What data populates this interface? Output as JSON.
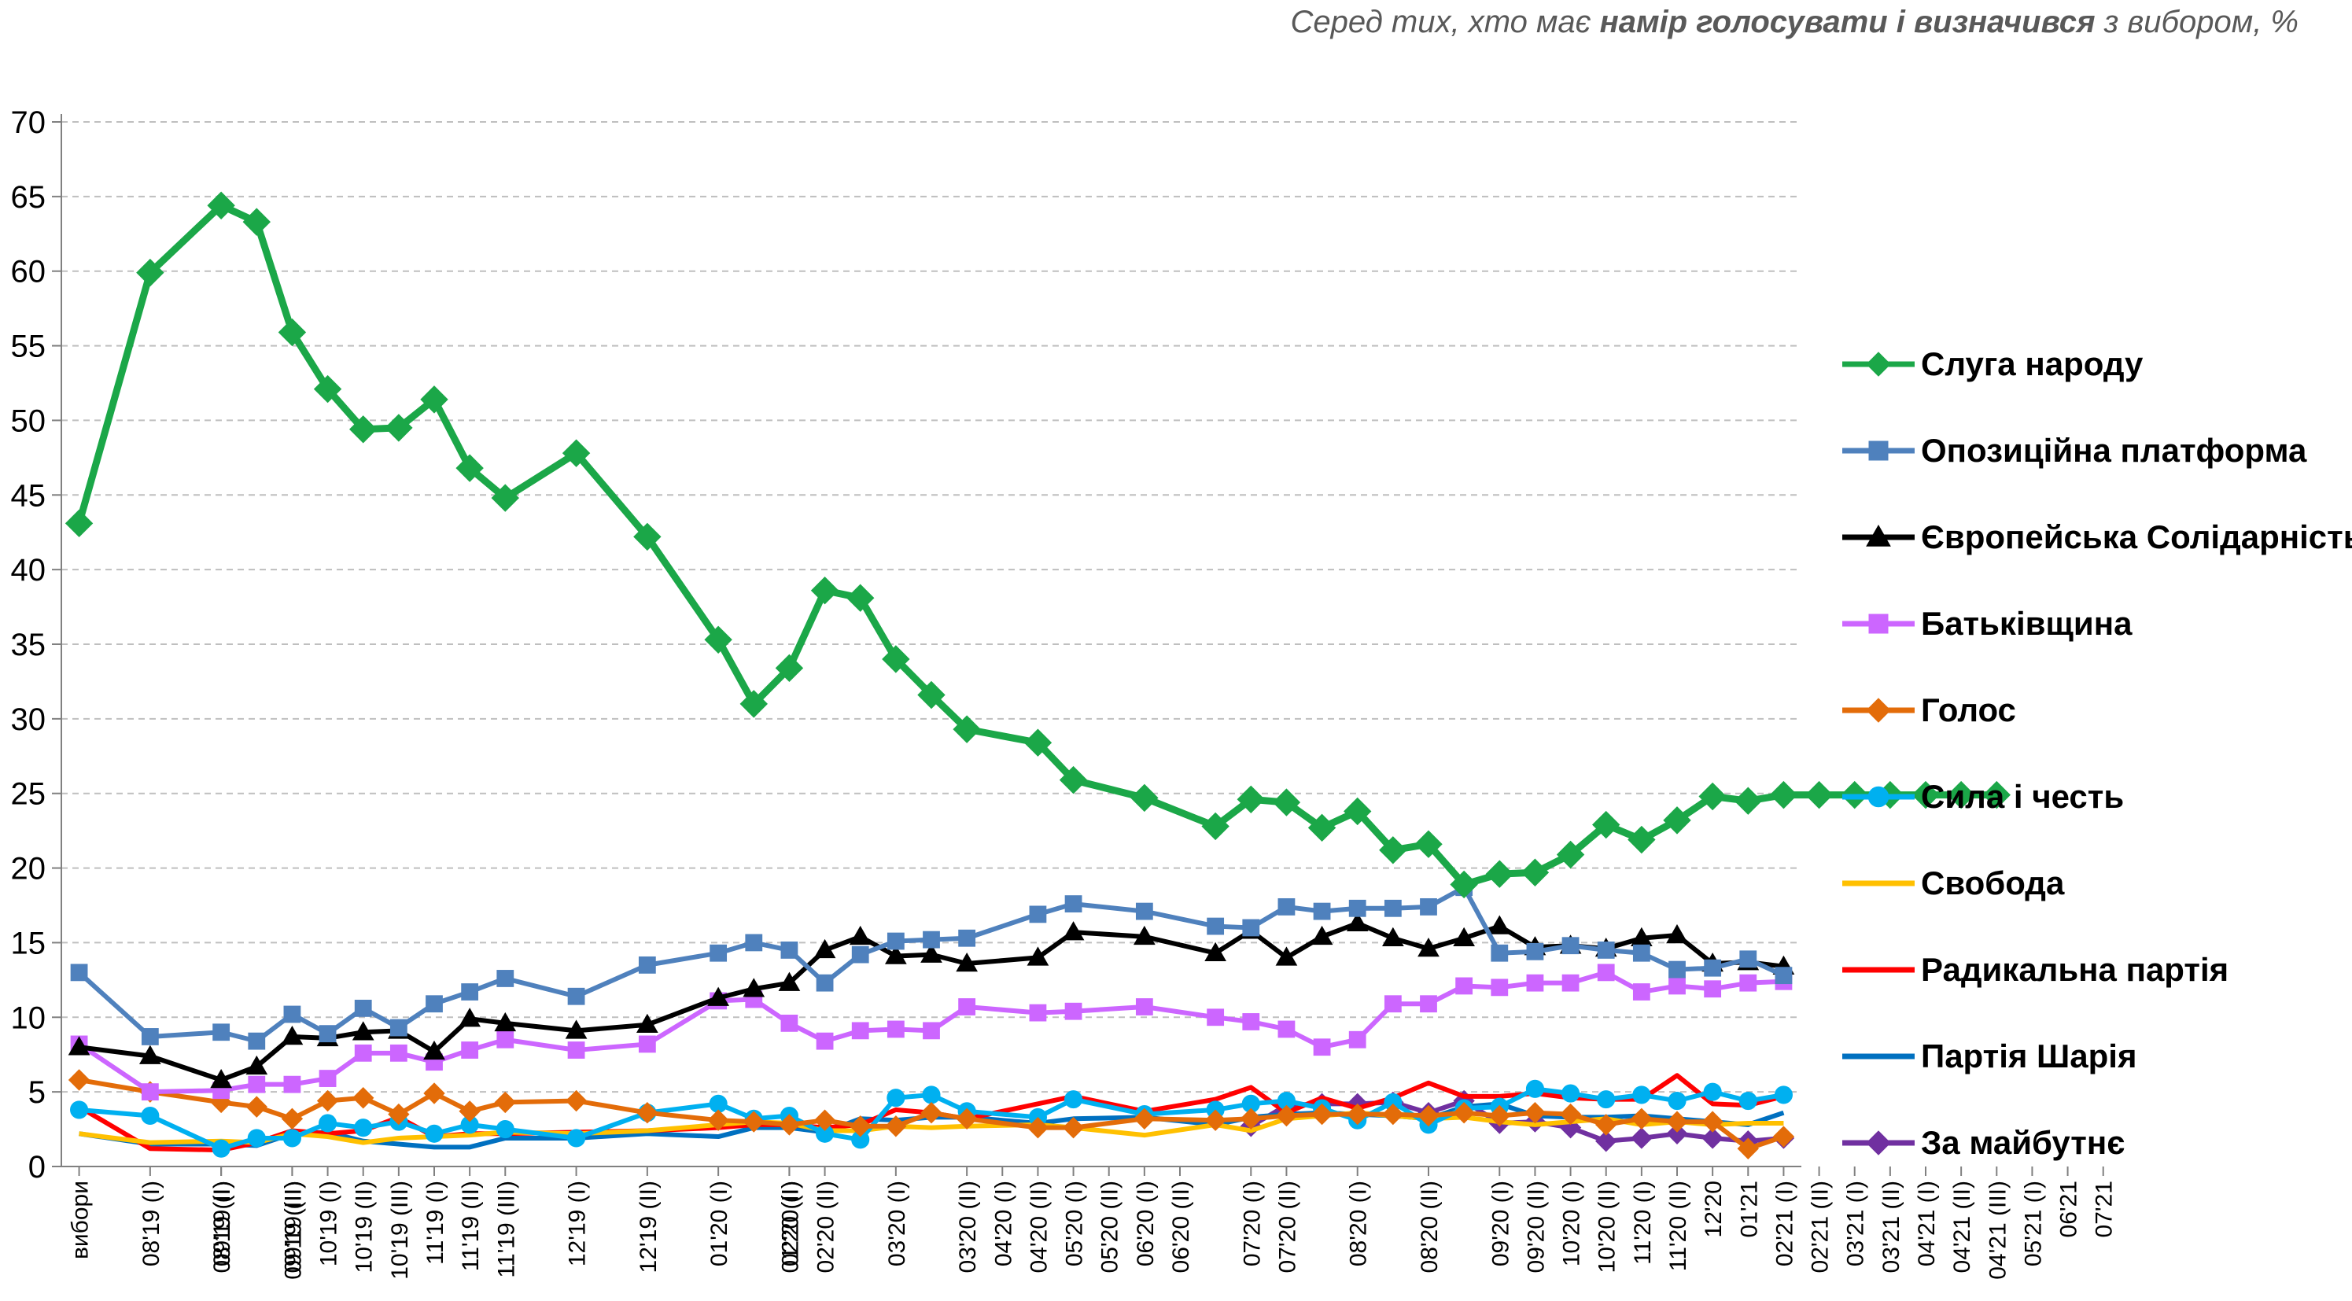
{
  "subtitle": {
    "before": "Серед тих, хто має ",
    "bold": "намір голосувати і визначився",
    "after": " з вибором, %"
  },
  "chart_data": {
    "type": "line",
    "title": "",
    "xlabel": "",
    "ylabel": "",
    "ylim": [
      0,
      70
    ],
    "y_ticks": [
      0,
      5,
      10,
      15,
      20,
      25,
      30,
      35,
      40,
      45,
      50,
      55,
      60,
      65,
      70
    ],
    "grid": "horizontal dashed",
    "legend_position": "right",
    "categories": [
      "вибори",
      "08'19 (I)",
      "08'19 (II)",
      "09'19 (I)",
      "09'19 (II)",
      "09'19 (III)",
      "10'19 (I)",
      "10'19 (II)",
      "10'19 (III)",
      "11'19 (I)",
      "11'19 (II)",
      "11'19 (III)",
      "12'19 (I)",
      "12'19 (II)",
      "01'20 (I)",
      "01'20 (II)",
      "02'20 (I)",
      "02'20 (II)",
      "03'20 (I)",
      "03'20 (II)",
      "04'20 (I)",
      "04'20 (II)",
      "05'20 (I)",
      "05'20 (II)",
      "06'20 (I)",
      "06'20 (II)",
      "07'20 (I)",
      "07'20 (II)",
      "08'20 (I)",
      "08'20 (II)",
      "09'20 (I)",
      "09'20 (II)",
      "10'20 (I)",
      "10'20 (II)",
      "11'20 (I)",
      "11'20 (II)",
      "12'20",
      "01'21",
      "02'21 (I)",
      "02'21 (II)",
      "03'21 (I)",
      "03'21 (II)",
      "04'21 (I)",
      "04'21 (II)",
      "04'21 (III)",
      "05'21 (I)",
      "06'21",
      "07'21"
    ],
    "x_positions": [
      0,
      2,
      4,
      4,
      6,
      6,
      7,
      8,
      9,
      10,
      11,
      12,
      14,
      16,
      18,
      20,
      20,
      21,
      23,
      25,
      26,
      27,
      28,
      29,
      30,
      31,
      33,
      34,
      36,
      38,
      40,
      41,
      42,
      43,
      44,
      45,
      46,
      47,
      48,
      49,
      50,
      51,
      52,
      53,
      54,
      55,
      56,
      57
    ],
    "series": [
      {
        "name": "Слуга народу",
        "color": "#1BA748",
        "marker": "diamond",
        "marker_color": "#1BA748",
        "x": [
          0,
          2,
          4,
          5,
          6,
          7,
          8,
          9,
          10,
          11,
          12,
          14,
          16,
          18,
          19,
          20,
          21,
          22,
          23,
          24,
          25,
          27,
          28,
          30,
          32,
          33,
          34,
          35,
          36,
          37,
          38,
          39,
          40,
          41,
          42,
          43,
          44,
          45,
          46,
          47,
          48,
          49,
          50,
          51,
          52,
          53,
          54
        ],
        "values": [
          43.1,
          59.9,
          64.4,
          63.3,
          55.9,
          52.1,
          49.4,
          49.5,
          51.4,
          46.8,
          44.8,
          47.8,
          42.2,
          35.3,
          31.0,
          33.4,
          38.6,
          38.1,
          34.0,
          31.6,
          29.3,
          28.4,
          25.9,
          24.7,
          22.8,
          24.6,
          24.4,
          22.7,
          23.8,
          21.2,
          21.6,
          18.9,
          19.6,
          19.7,
          20.9,
          22.9,
          21.9,
          23.2,
          24.8,
          24.5,
          24.9,
          24.9,
          24.9,
          24.9,
          24.9,
          24.9,
          24.9
        ]
      },
      {
        "name": "Опозиційна платформа",
        "color": "#4F81BD",
        "marker": "square",
        "marker_color": "#4F81BD",
        "x": [
          0,
          2,
          4,
          5,
          6,
          7,
          8,
          9,
          10,
          11,
          12,
          14,
          16,
          18,
          19,
          20,
          21,
          22,
          23,
          24,
          25,
          27,
          28,
          30,
          32,
          33,
          34,
          35,
          36,
          37,
          38,
          39,
          40,
          41,
          42,
          43,
          44,
          45,
          46,
          47,
          48
        ],
        "values": [
          13.0,
          8.7,
          9.0,
          8.4,
          10.2,
          8.9,
          10.6,
          9.3,
          10.9,
          11.7,
          12.6,
          11.4,
          13.5,
          14.3,
          15.0,
          14.5,
          12.3,
          14.2,
          15.1,
          15.2,
          15.3,
          16.9,
          17.6,
          17.1,
          16.1,
          16.0,
          17.4,
          17.1,
          17.3,
          17.3,
          17.4,
          18.7,
          14.3,
          14.4,
          14.8,
          14.5,
          14.3,
          13.2,
          13.3,
          13.9,
          12.8
        ]
      },
      {
        "name": "Європейська Солідарність",
        "color": "#000000",
        "marker": "triangle",
        "marker_color": "#000000",
        "x": [
          0,
          2,
          4,
          5,
          6,
          7,
          8,
          9,
          10,
          11,
          12,
          14,
          16,
          18,
          19,
          20,
          21,
          22,
          23,
          24,
          25,
          27,
          28,
          30,
          32,
          33,
          34,
          35,
          36,
          37,
          38,
          39,
          40,
          41,
          42,
          43,
          44,
          45,
          46,
          47,
          48
        ],
        "values": [
          8.0,
          7.4,
          5.8,
          6.7,
          8.7,
          8.6,
          9.0,
          9.1,
          7.7,
          9.9,
          9.6,
          9.1,
          9.5,
          11.3,
          11.9,
          12.3,
          14.5,
          15.4,
          14.1,
          14.2,
          13.6,
          14.0,
          15.7,
          15.4,
          14.3,
          15.8,
          14.0,
          15.4,
          16.3,
          15.3,
          14.6,
          15.3,
          16.1,
          14.7,
          14.8,
          14.6,
          15.3,
          15.5,
          13.6,
          13.7,
          13.4
        ]
      },
      {
        "name": "Батьківщина",
        "color": "#CC66FF",
        "marker": "square",
        "marker_color": "#CC66FF",
        "x": [
          0,
          2,
          4,
          5,
          6,
          7,
          8,
          9,
          10,
          11,
          12,
          14,
          16,
          18,
          19,
          20,
          21,
          22,
          23,
          24,
          25,
          27,
          28,
          30,
          32,
          33,
          34,
          35,
          36,
          37,
          38,
          39,
          40,
          41,
          42,
          43,
          44,
          45,
          46,
          47,
          48
        ],
        "values": [
          8.2,
          5.0,
          5.1,
          5.5,
          5.5,
          5.9,
          7.6,
          7.6,
          7.0,
          7.8,
          8.5,
          7.8,
          8.2,
          11.1,
          11.2,
          9.6,
          8.4,
          9.1,
          9.2,
          9.1,
          10.7,
          10.3,
          10.4,
          10.7,
          10.0,
          9.7,
          9.2,
          8.0,
          8.5,
          10.9,
          10.9,
          12.1,
          12.0,
          12.3,
          12.3,
          13.0,
          11.7,
          12.1,
          11.9,
          12.3,
          12.4
        ]
      },
      {
        "name": "Голос",
        "color": "#E36C09",
        "marker": "diamond",
        "marker_color": "#E36C09",
        "x": [
          0,
          2,
          4,
          5,
          6,
          7,
          8,
          9,
          10,
          11,
          12,
          14,
          16,
          18,
          19,
          20,
          21,
          22,
          23,
          24,
          25,
          27,
          28,
          30,
          32,
          33,
          34,
          35,
          36,
          37,
          38,
          39,
          40,
          41,
          42,
          43,
          44,
          45,
          46,
          47,
          48
        ],
        "values": [
          5.8,
          5.0,
          4.3,
          4.0,
          3.2,
          4.4,
          4.6,
          3.5,
          4.9,
          3.7,
          4.3,
          4.4,
          3.6,
          3.1,
          3.0,
          2.8,
          3.1,
          2.7,
          2.7,
          3.6,
          3.2,
          2.6,
          2.6,
          3.2,
          3.1,
          3.2,
          3.4,
          3.5,
          3.5,
          3.5,
          3.4,
          3.6,
          3.4,
          3.6,
          3.5,
          2.8,
          3.2,
          3.0,
          3.0,
          1.2,
          2.0
        ]
      },
      {
        "name": "Сила і честь",
        "color": "#00B0F0",
        "marker": "circle",
        "marker_color": "#00B0F0",
        "x": [
          0,
          2,
          4,
          5,
          6,
          7,
          8,
          9,
          10,
          11,
          12,
          14,
          16,
          18,
          19,
          20,
          21,
          22,
          23,
          24,
          25,
          27,
          28,
          30,
          32,
          33,
          34,
          35,
          36,
          37,
          38,
          39,
          40,
          41,
          42,
          43,
          44,
          45,
          46,
          47,
          48
        ],
        "values": [
          3.8,
          3.4,
          1.2,
          1.9,
          1.9,
          2.9,
          2.6,
          3.0,
          2.2,
          2.8,
          2.5,
          1.9,
          3.6,
          4.2,
          3.2,
          3.4,
          2.2,
          1.8,
          4.6,
          4.8,
          3.7,
          3.3,
          4.5,
          3.5,
          3.8,
          4.2,
          4.4,
          3.9,
          3.1,
          4.3,
          2.8,
          3.9,
          4.0,
          5.2,
          4.9,
          4.5,
          4.8,
          4.4,
          5.0,
          4.4,
          4.8
        ]
      },
      {
        "name": "Свобода",
        "color": "#FFC000",
        "marker": "none",
        "marker_color": "#FFC000",
        "x": [
          0,
          2,
          4,
          5,
          6,
          7,
          8,
          9,
          10,
          11,
          12,
          14,
          16,
          18,
          19,
          20,
          21,
          22,
          23,
          24,
          25,
          27,
          28,
          30,
          32,
          33,
          34,
          35,
          36,
          37,
          38,
          39,
          40,
          41,
          42,
          43,
          44,
          45,
          46,
          47,
          48
        ],
        "values": [
          2.2,
          1.6,
          1.7,
          1.6,
          2.2,
          2.0,
          1.6,
          1.9,
          2.0,
          2.1,
          2.3,
          2.2,
          2.4,
          2.8,
          3.0,
          2.9,
          2.4,
          2.4,
          2.7,
          2.6,
          2.7,
          2.8,
          2.6,
          2.1,
          2.8,
          2.4,
          3.2,
          3.4,
          3.6,
          3.4,
          3.2,
          3.3,
          3.0,
          2.8,
          3.0,
          3.2,
          2.8,
          3.0,
          2.8,
          2.9,
          2.9
        ]
      },
      {
        "name": "Радикальна партія",
        "color": "#FF0000",
        "marker": "none",
        "marker_color": "#FF0000",
        "x": [
          0,
          2,
          4,
          5,
          6,
          7,
          8,
          9,
          10,
          11,
          12,
          14,
          16,
          18,
          19,
          20,
          21,
          22,
          23,
          24,
          25,
          27,
          28,
          30,
          32,
          33,
          34,
          35,
          36,
          37,
          38,
          39,
          40,
          41,
          42,
          43,
          44,
          45,
          46,
          47,
          48
        ],
        "values": [
          4.0,
          1.2,
          1.1,
          1.6,
          2.4,
          2.2,
          2.4,
          3.3,
          2.0,
          2.2,
          2.2,
          2.3,
          2.4,
          2.6,
          2.8,
          2.8,
          2.6,
          2.8,
          3.8,
          3.6,
          3.2,
          4.2,
          4.7,
          3.7,
          4.5,
          5.3,
          3.6,
          4.6,
          3.9,
          4.6,
          5.6,
          4.7,
          4.7,
          4.9,
          4.6,
          4.5,
          4.5,
          6.1,
          4.2,
          4.1,
          4.7
        ]
      },
      {
        "name": "Партія Шарія",
        "color": "#0070C0",
        "marker": "none",
        "marker_color": "#0070C0",
        "x": [
          0,
          2,
          4,
          5,
          6,
          7,
          8,
          9,
          10,
          11,
          12,
          14,
          16,
          18,
          19,
          20,
          21,
          22,
          23,
          24,
          25,
          27,
          28,
          30,
          32,
          33,
          34,
          35,
          36,
          37,
          38,
          39,
          40,
          41,
          42,
          43,
          44,
          45,
          46,
          47,
          48
        ],
        "values": [
          2.2,
          1.5,
          1.5,
          1.4,
          2.2,
          2.3,
          1.7,
          1.5,
          1.3,
          1.3,
          1.9,
          1.9,
          2.2,
          2.0,
          2.6,
          2.6,
          2.3,
          3.2,
          3.1,
          3.3,
          3.3,
          2.9,
          3.2,
          3.3,
          2.8,
          3.3,
          3.5,
          3.6,
          3.5,
          3.4,
          3.2,
          4.0,
          4.2,
          3.4,
          3.3,
          3.3,
          3.4,
          3.2,
          3.0,
          2.8,
          3.6
        ]
      },
      {
        "name": "За майбутнє",
        "color": "#7030A0",
        "marker": "diamond",
        "marker_color": "#7030A0",
        "x": [
          33,
          34,
          35,
          36,
          37,
          38,
          39,
          40,
          41,
          42,
          43,
          44,
          45,
          46,
          47,
          48
        ],
        "values": [
          2.7,
          4.1,
          4.2,
          4.2,
          4.3,
          3.6,
          4.4,
          2.9,
          3.0,
          2.6,
          1.7,
          1.9,
          2.2,
          1.9,
          1.7,
          1.9
        ]
      }
    ]
  }
}
